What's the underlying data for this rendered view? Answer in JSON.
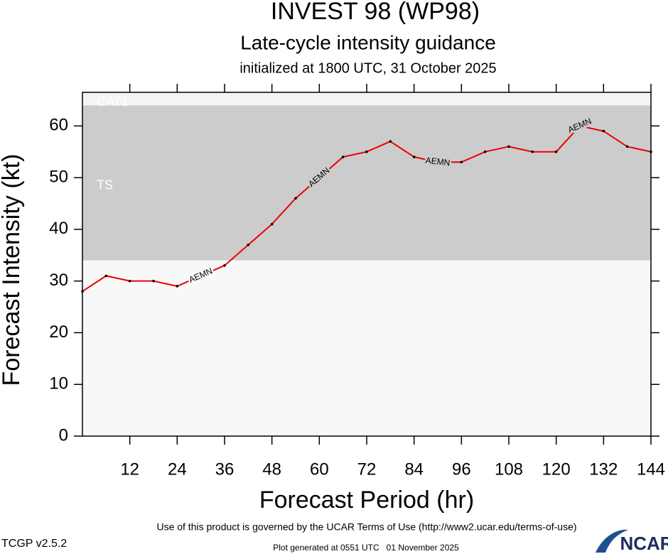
{
  "chart_data": {
    "type": "line",
    "title": "INVEST 98 (WP98)",
    "subtitle": "Late-cycle intensity guidance",
    "init_text": "initialized at 1800 UTC, 31 October 2025",
    "x_label": "Forecast Period (hr)",
    "y_label": "Forecast Intensity (kt)",
    "x": [
      0,
      6,
      12,
      18,
      24,
      30,
      36,
      42,
      48,
      54,
      60,
      66,
      72,
      78,
      84,
      90,
      96,
      102,
      108,
      114,
      120,
      126,
      132,
      138,
      144
    ],
    "series": [
      {
        "name": "AEMN",
        "color": "#ee0000",
        "values": [
          28,
          31,
          30,
          30,
          29,
          31,
          33,
          37,
          41,
          46,
          50,
          54,
          55,
          57,
          54,
          53,
          53,
          55,
          56,
          55,
          55,
          60,
          59,
          56,
          55
        ]
      }
    ],
    "series_label_at": [
      30,
      60,
      90,
      126
    ],
    "xlim": [
      0,
      144
    ],
    "xticks": [
      12,
      24,
      36,
      48,
      60,
      72,
      84,
      96,
      108,
      120,
      132,
      144
    ],
    "ylim": [
      0,
      66.5
    ],
    "yticks": [
      0,
      10,
      20,
      30,
      40,
      50,
      60
    ],
    "background": "#f8f8f8",
    "bands": [
      {
        "label": "TS",
        "range": [
          34,
          64
        ],
        "color": "#cccccc"
      },
      {
        "label": "CAT1",
        "range": [
          64,
          66.5
        ],
        "color": "#f4f4f4"
      }
    ],
    "footer": {
      "terms": "Use of this product is governed by the UCAR Terms of Use (http://www2.ucar.edu/terms-of-use)",
      "version": "TCGP v2.5.2",
      "generated": "Plot generated at 0551 UTC   01 November 2025",
      "logo": "NCAR"
    }
  }
}
